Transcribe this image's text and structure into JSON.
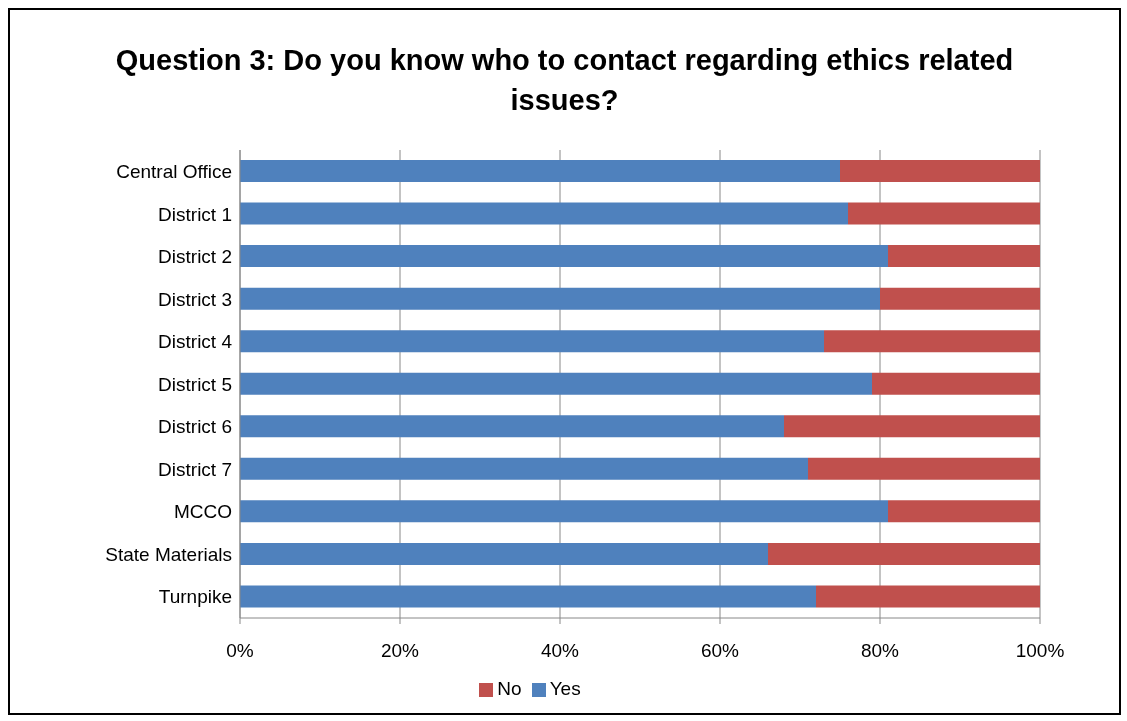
{
  "chart_data": {
    "type": "bar",
    "title": "Question 3: Do you know who to contact regarding ethics related issues?",
    "orientation": "horizontal",
    "stacked": true,
    "categories": [
      "Central Office",
      "District 1",
      "District 2",
      "District 3",
      "District 4",
      "District 5",
      "District 6",
      "District 7",
      "MCCO",
      "State Materials",
      "Turnpike"
    ],
    "series": [
      {
        "name": "Yes",
        "color": "#4f81bd",
        "values": [
          75,
          76,
          81,
          80,
          73,
          79,
          68,
          71,
          81,
          66,
          72
        ]
      },
      {
        "name": "No",
        "color": "#c0504d",
        "values": [
          25,
          24,
          19,
          20,
          27,
          21,
          32,
          29,
          19,
          34,
          28
        ]
      }
    ],
    "xlim": [
      0,
      100
    ],
    "xticks": [
      {
        "value": 0,
        "label": "0%"
      },
      {
        "value": 20,
        "label": "20%"
      },
      {
        "value": 40,
        "label": "40%"
      },
      {
        "value": 60,
        "label": "60%"
      },
      {
        "value": 80,
        "label": "80%"
      },
      {
        "value": 100,
        "label": "100%"
      }
    ],
    "grid": "x",
    "legend": "bottom"
  }
}
